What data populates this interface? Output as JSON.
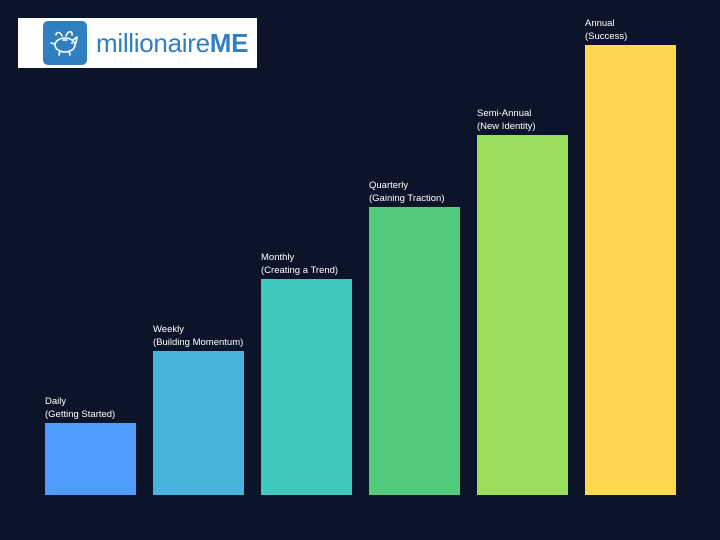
{
  "logo": {
    "text_light": "millionaire",
    "text_bold": "ME",
    "icon": "piggy-bank-icon",
    "brand_color": "#2f7fc1"
  },
  "background_color": "#0b1429",
  "chart_data": {
    "type": "bar",
    "categories": [
      "Daily",
      "Weekly",
      "Monthly",
      "Quarterly",
      "Semi-Annual",
      "Annual"
    ],
    "sublabels": [
      "(Getting Started)",
      "(Building Momentum)",
      "(Creating a Trend)",
      "(Gaining Traction)",
      "(New Identity)",
      "(Success)"
    ],
    "values": [
      1,
      2,
      3,
      4,
      5,
      6.25
    ],
    "colors": [
      "#4f9cff",
      "#46b4dd",
      "#3ec9bc",
      "#52cb7d",
      "#9ade5e",
      "#ffd84f"
    ],
    "ylim": [
      0,
      6.25
    ],
    "grid": false,
    "legend": "none",
    "title": "",
    "xlabel": "",
    "ylabel": ""
  }
}
